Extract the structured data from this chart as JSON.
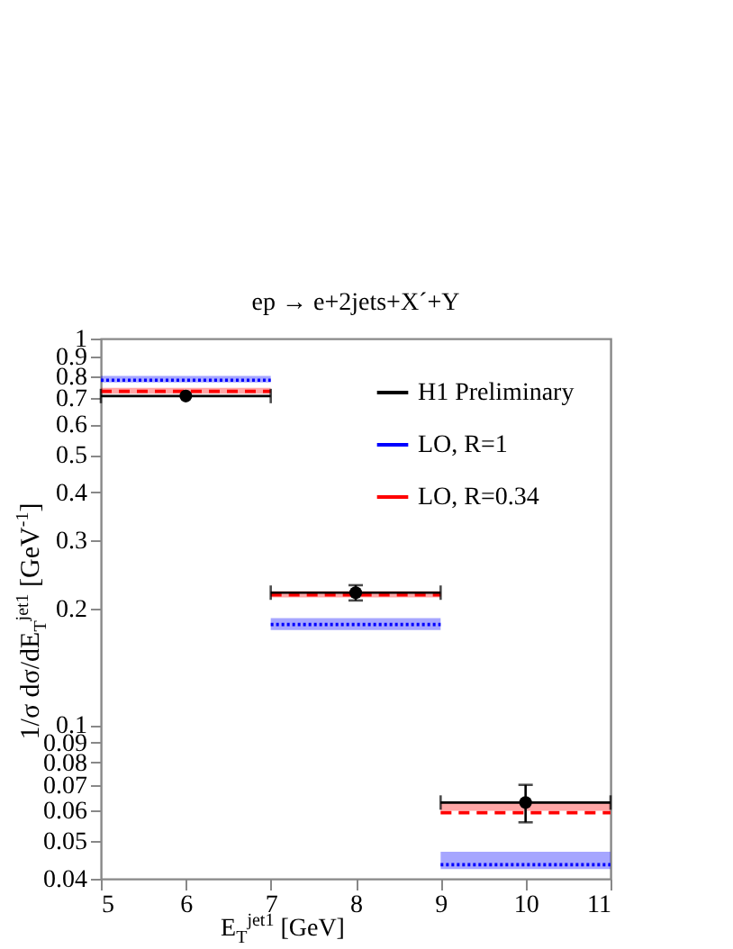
{
  "chart_data": {
    "type": "scatter",
    "title": "ep → e+2jets+X´+Y",
    "xlabel": "E$_{T}$$^{jet1}$ [GeV]",
    "ylabel": "1/σ dσ/dE$_{T}$$^{jet1}$ [GeV$^{-1}$]",
    "series": [
      {
        "name": "H1 Preliminary",
        "type": "scatter",
        "color": "#000000",
        "marker": "circle",
        "x": [
          6,
          8,
          10
        ],
        "values": [
          0.71,
          0.22,
          0.063
        ],
        "xerrors": [
          1,
          1,
          1
        ],
        "errors": [
          null,
          [
            0.21,
            0.23
          ],
          [
            0.056,
            0.07
          ]
        ]
      },
      {
        "name": "LO, R=1",
        "type": "line",
        "color": "#0000ff",
        "line_style": "dotted",
        "x": [
          5,
          7,
          7,
          9,
          9,
          11
        ],
        "values": [
          0.78,
          0.78,
          0.182,
          0.182,
          0.0435,
          0.0435
        ],
        "lower": [
          0.77,
          0.77,
          0.176,
          0.176,
          0.0424,
          0.0424
        ],
        "upper": [
          0.8,
          0.8,
          0.189,
          0.189,
          0.047,
          0.047
        ]
      },
      {
        "name": "LO, R=0.34",
        "type": "line",
        "color": "#ff0000",
        "line_style": "dashed",
        "x": [
          5,
          7,
          7,
          9,
          9,
          11
        ],
        "values": [
          0.73,
          0.73,
          0.217,
          0.217,
          0.0593,
          0.0593
        ],
        "lower": [
          0.72,
          0.72,
          0.214,
          0.214,
          0.06,
          0.06
        ],
        "upper": [
          0.745,
          0.745,
          0.222,
          0.222,
          0.063,
          0.063
        ]
      }
    ],
    "xlim": [
      5,
      11
    ],
    "xticks": [
      5,
      6,
      7,
      8,
      9,
      10,
      11
    ],
    "ylim": [
      0.04,
      1
    ],
    "yticks": [
      0.04,
      0.05,
      0.06,
      0.07,
      0.08,
      0.09,
      0.1,
      0.2,
      0.3,
      0.4,
      0.5,
      0.6,
      0.7,
      0.8,
      0.9,
      1
    ],
    "log": "y",
    "grid": false,
    "legend": "top right"
  }
}
